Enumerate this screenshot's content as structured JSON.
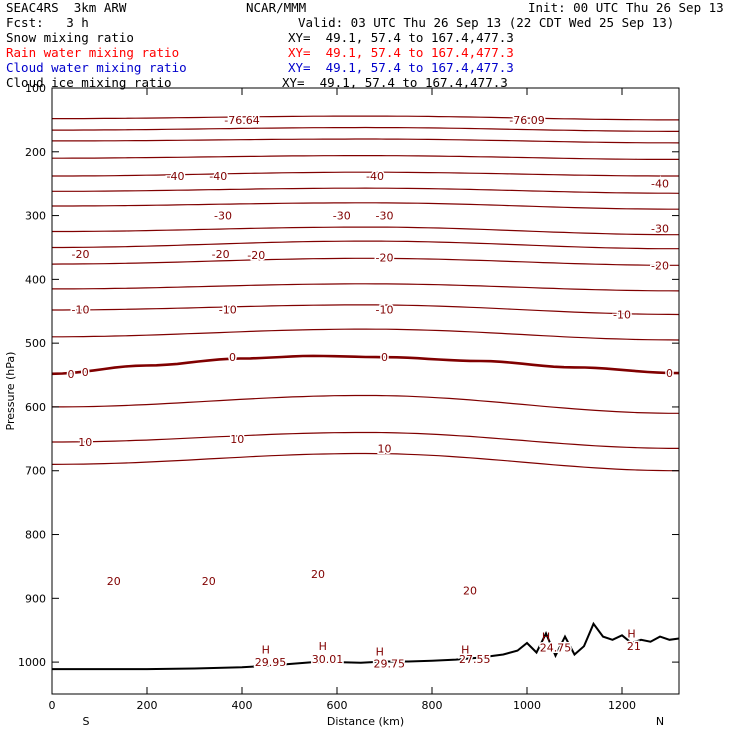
{
  "header": {
    "model": "SEAC4RS  3km ARW",
    "center": "NCAR/MMM",
    "init": "Init: 00 UTC Thu 26 Sep 13",
    "fcst": "Fcst:   3 h",
    "valid": "Valid: 03 UTC Thu 26 Sep 13 (22 CDT Wed 25 Sep 13)"
  },
  "legend": [
    {
      "label": "Snow mixing ratio",
      "xy": "XY=  49.1, 57.4 to 167.4,477.3",
      "color": "#000000"
    },
    {
      "label": "Rain water mixing ratio",
      "xy": "XY=  49.1, 57.4 to 167.4,477.3",
      "color": "#ff0000"
    },
    {
      "label": "Cloud water mixing ratio",
      "xy": "XY=  49.1, 57.4 to 167.4,477.3",
      "color": "#0000cc"
    },
    {
      "label": "Cloud ice mixing ratio",
      "xy": "XY=  49.1, 57.4 to 167.4,477.3",
      "color": "#000000"
    }
  ],
  "chart_data": {
    "type": "line",
    "ylabel": "Pressure (hPa)",
    "xlabel": "Distance (km)",
    "x_start_label": "S",
    "x_end_label": "N",
    "xlim": [
      0,
      1320
    ],
    "ylim": [
      1050,
      100
    ],
    "x_ticks": [
      0,
      200,
      400,
      600,
      800,
      1000,
      1200
    ],
    "y_ticks": [
      100,
      200,
      300,
      400,
      500,
      600,
      700,
      800,
      900,
      1000
    ],
    "contour_color": "#800000",
    "terrain_color": "#000000",
    "isotherms": [
      {
        "x": [
          0,
          660,
          1320
        ],
        "y": [
          148,
          144,
          150
        ]
      },
      {
        "x": [
          0,
          660,
          1320
        ],
        "y": [
          166,
          162,
          168
        ]
      },
      {
        "x": [
          0,
          660,
          1320
        ],
        "y": [
          183,
          180,
          186
        ]
      },
      {
        "x": [
          0,
          660,
          1320
        ],
        "y": [
          210,
          206,
          212
        ]
      },
      {
        "x": [
          0,
          660,
          1320
        ],
        "y": [
          238,
          232,
          238
        ]
      },
      {
        "x": [
          0,
          660,
          1320
        ],
        "y": [
          262,
          257,
          265
        ]
      },
      {
        "x": [
          0,
          660,
          1320
        ],
        "y": [
          285,
          280,
          290
        ]
      },
      {
        "x": [
          0,
          660,
          1320
        ],
        "y": [
          325,
          318,
          330
        ]
      },
      {
        "x": [
          0,
          660,
          1320
        ],
        "y": [
          350,
          340,
          352
        ]
      },
      {
        "x": [
          0,
          660,
          1320
        ],
        "y": [
          376,
          367,
          378
        ]
      },
      {
        "x": [
          0,
          660,
          1320
        ],
        "y": [
          415,
          407,
          418
        ]
      },
      {
        "x": [
          0,
          660,
          1320
        ],
        "y": [
          448,
          440,
          455
        ]
      },
      {
        "x": [
          0,
          660,
          1320
        ],
        "y": [
          490,
          478,
          495
        ]
      },
      {
        "x": [
          0,
          660,
          1320
        ],
        "y": [
          600,
          582,
          610
        ]
      },
      {
        "x": [
          0,
          660,
          1320
        ],
        "y": [
          655,
          640,
          665
        ]
      },
      {
        "x": [
          0,
          660,
          1320
        ],
        "y": [
          690,
          673,
          700
        ]
      }
    ],
    "freezing_level": {
      "x": [
        0,
        200,
        400,
        550,
        700,
        900,
        1100,
        1320
      ],
      "y": [
        548,
        535,
        524,
        520,
        522,
        528,
        538,
        547
      ]
    },
    "contour_labels": [
      {
        "text": "-76.64",
        "x": 400,
        "y": 150
      },
      {
        "text": "-76.09",
        "x": 1000,
        "y": 150
      },
      {
        "text": "-40",
        "x": 260,
        "y": 238
      },
      {
        "text": "-40",
        "x": 350,
        "y": 238
      },
      {
        "text": "-40",
        "x": 680,
        "y": 238
      },
      {
        "text": "-40",
        "x": 1280,
        "y": 250
      },
      {
        "text": "-30",
        "x": 360,
        "y": 300
      },
      {
        "text": "-30",
        "x": 610,
        "y": 300
      },
      {
        "text": "-30",
        "x": 700,
        "y": 300
      },
      {
        "text": "-30",
        "x": 1280,
        "y": 320
      },
      {
        "text": "-20",
        "x": 60,
        "y": 360
      },
      {
        "text": "-20",
        "x": 355,
        "y": 360
      },
      {
        "text": "-20",
        "x": 430,
        "y": 362
      },
      {
        "text": "-20",
        "x": 700,
        "y": 366
      },
      {
        "text": "-20",
        "x": 1280,
        "y": 378
      },
      {
        "text": "-10",
        "x": 60,
        "y": 447
      },
      {
        "text": "-10",
        "x": 370,
        "y": 447
      },
      {
        "text": "-10",
        "x": 700,
        "y": 447
      },
      {
        "text": "-10",
        "x": 1200,
        "y": 455
      },
      {
        "text": "0",
        "x": 40,
        "y": 548
      },
      {
        "text": "0",
        "x": 70,
        "y": 545
      },
      {
        "text": "0",
        "x": 380,
        "y": 522
      },
      {
        "text": "0",
        "x": 700,
        "y": 522
      },
      {
        "text": "0",
        "x": 1300,
        "y": 547
      },
      {
        "text": "10",
        "x": 70,
        "y": 655
      },
      {
        "text": "10",
        "x": 390,
        "y": 650
      },
      {
        "text": "10",
        "x": 700,
        "y": 665
      },
      {
        "text": "20",
        "x": 130,
        "y": 873
      },
      {
        "text": "20",
        "x": 330,
        "y": 873
      },
      {
        "text": "20",
        "x": 560,
        "y": 862
      },
      {
        "text": "20",
        "x": 880,
        "y": 888
      },
      {
        "text": "29.95",
        "x": 460,
        "y": 1000
      },
      {
        "text": "30.01",
        "x": 580,
        "y": 995
      },
      {
        "text": "29.75",
        "x": 710,
        "y": 1002
      },
      {
        "text": "27.55",
        "x": 890,
        "y": 995
      },
      {
        "text": "24.75",
        "x": 1060,
        "y": 977
      },
      {
        "text": "21",
        "x": 1225,
        "y": 975
      }
    ],
    "highs": [
      {
        "text": "H",
        "x": 450,
        "y": 980
      },
      {
        "text": "H",
        "x": 570,
        "y": 975
      },
      {
        "text": "H",
        "x": 690,
        "y": 983
      },
      {
        "text": "H",
        "x": 870,
        "y": 980
      },
      {
        "text": "H",
        "x": 1040,
        "y": 960
      },
      {
        "text": "H",
        "x": 1220,
        "y": 955
      }
    ],
    "terrain": {
      "x": [
        0,
        100,
        200,
        300,
        400,
        450,
        500,
        550,
        600,
        650,
        700,
        750,
        800,
        850,
        900,
        950,
        980,
        1000,
        1020,
        1040,
        1060,
        1080,
        1100,
        1120,
        1140,
        1160,
        1180,
        1200,
        1220,
        1240,
        1260,
        1280,
        1300,
        1320
      ],
      "y": [
        1011,
        1011,
        1011,
        1010,
        1008,
        1006,
        1003,
        1000,
        1000,
        1001,
        999,
        999,
        998,
        996,
        993,
        988,
        982,
        970,
        985,
        955,
        990,
        960,
        988,
        975,
        940,
        960,
        965,
        958,
        970,
        965,
        968,
        960,
        965,
        963
      ]
    }
  }
}
